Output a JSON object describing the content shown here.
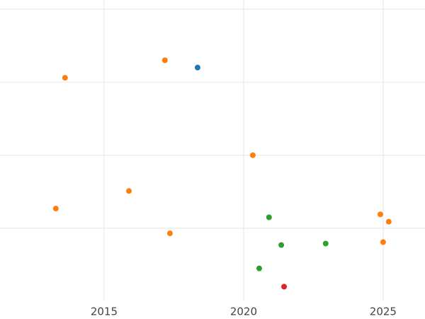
{
  "chart_data": {
    "type": "scatter",
    "series": [
      {
        "color": "#ff7f0e",
        "x": [
          2013.6,
          2017.18,
          2020.33,
          2015.89,
          2013.27,
          2017.36,
          2024.9,
          2025.2,
          2025.0
        ],
        "values": [
          3.06,
          3.3,
          2.0,
          1.51,
          1.27,
          0.93,
          1.19,
          1.09,
          0.81
        ]
      },
      {
        "color": "#1f77b4",
        "x": [
          2018.35
        ],
        "values": [
          3.2
        ]
      },
      {
        "color": "#2ca02c",
        "x": [
          2020.91,
          2021.35,
          2022.94,
          2020.56
        ],
        "values": [
          1.15,
          0.77,
          0.79,
          0.45
        ]
      },
      {
        "color": "#d62728",
        "x": [
          2021.45
        ],
        "values": [
          0.2
        ]
      }
    ],
    "xlim": [
      2011.27,
      2026.5
    ],
    "xticks": [
      2015,
      2020,
      2025
    ],
    "ylim": [
      0,
      4.125
    ],
    "yticks": [
      1,
      2,
      3,
      4
    ],
    "grid": true,
    "ytick_labels": false
  }
}
